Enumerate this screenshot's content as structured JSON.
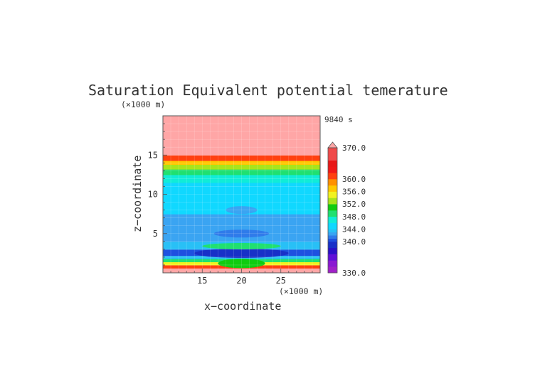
{
  "chart_data": {
    "type": "heatmap",
    "title": "Saturation Equivalent potential temerature",
    "time_label": "9840 s",
    "xlabel": "x−coordinate",
    "ylabel": "z−coordinate",
    "x_unit": "(×1000 m)",
    "y_unit": "(×1000 m)",
    "xlim": [
      10,
      30
    ],
    "ylim": [
      0,
      20
    ],
    "x_ticks": [
      15,
      20,
      25
    ],
    "y_ticks": [
      5,
      10,
      15
    ],
    "bands": [
      {
        "z_bottom": 0.0,
        "z_top": 0.6,
        "level": 370
      },
      {
        "z_bottom": 0.6,
        "z_top": 1.0,
        "level": 360
      },
      {
        "z_bottom": 1.0,
        "z_top": 1.4,
        "level": 354
      },
      {
        "z_bottom": 1.4,
        "z_top": 1.8,
        "level": 348
      },
      {
        "z_bottom": 1.8,
        "z_top": 2.2,
        "level": 343
      },
      {
        "z_bottom": 2.2,
        "z_top": 3.0,
        "level": 340
      },
      {
        "z_bottom": 3.0,
        "z_top": 4.0,
        "level": 343
      },
      {
        "z_bottom": 4.0,
        "z_top": 7.5,
        "level": 342
      },
      {
        "z_bottom": 7.5,
        "z_top": 11.5,
        "level": 344
      },
      {
        "z_bottom": 11.5,
        "z_top": 12.5,
        "level": 346
      },
      {
        "z_bottom": 12.5,
        "z_top": 13.2,
        "level": 348
      },
      {
        "z_bottom": 13.2,
        "z_top": 13.8,
        "level": 352
      },
      {
        "z_bottom": 13.8,
        "z_top": 14.3,
        "level": 356
      },
      {
        "z_bottom": 14.3,
        "z_top": 15.0,
        "level": 360
      },
      {
        "z_bottom": 15.0,
        "z_top": 20.0,
        "level": 370
      }
    ],
    "features": [
      {
        "x": 20,
        "z": 8.0,
        "rx": 2.0,
        "rz": 0.5,
        "level": 342
      },
      {
        "x": 20,
        "z": 5.0,
        "rx": 3.5,
        "rz": 0.5,
        "level": 341
      },
      {
        "x": 20,
        "z": 2.5,
        "rx": 6.0,
        "rz": 0.6,
        "level": 338
      },
      {
        "x": 20,
        "z": 3.4,
        "rx": 5.0,
        "rz": 0.4,
        "level": 348
      },
      {
        "x": 20,
        "z": 1.2,
        "rx": 3.0,
        "rz": 0.6,
        "level": 350
      }
    ],
    "colorbar": {
      "min": 330,
      "max": 370,
      "extend": "max",
      "tick_labels": [
        "370.0",
        "360.0",
        "356.0",
        "352.0",
        "348.0",
        "344.0",
        "340.0",
        "330.0"
      ],
      "tick_values": [
        370,
        360,
        356,
        352,
        348,
        344,
        340,
        330
      ],
      "levels": [
        {
          "value": 330,
          "color": "#a020c8"
        },
        {
          "value": 332,
          "color": "#8a18d2"
        },
        {
          "value": 334,
          "color": "#6010d8"
        },
        {
          "value": 336,
          "color": "#2a10c8"
        },
        {
          "value": 338,
          "color": "#1830c8"
        },
        {
          "value": 340,
          "color": "#1e50e0"
        },
        {
          "value": 341,
          "color": "#2f7bea"
        },
        {
          "value": 342,
          "color": "#3aa4f2"
        },
        {
          "value": 343,
          "color": "#28c0f6"
        },
        {
          "value": 344,
          "color": "#10d8ff"
        },
        {
          "value": 346,
          "color": "#10ecd8"
        },
        {
          "value": 348,
          "color": "#20e070"
        },
        {
          "value": 350,
          "color": "#10cc10"
        },
        {
          "value": 352,
          "color": "#a8e41c"
        },
        {
          "value": 354,
          "color": "#f2f220"
        },
        {
          "value": 356,
          "color": "#ffc800"
        },
        {
          "value": 358,
          "color": "#ff9000"
        },
        {
          "value": 360,
          "color": "#ff4010"
        },
        {
          "value": 362,
          "color": "#f01818"
        },
        {
          "value": 364,
          "color": "#e81818"
        },
        {
          "value": 366,
          "color": "#f04a4a"
        },
        {
          "value": 370,
          "color": "#ffa6a6"
        }
      ]
    }
  }
}
